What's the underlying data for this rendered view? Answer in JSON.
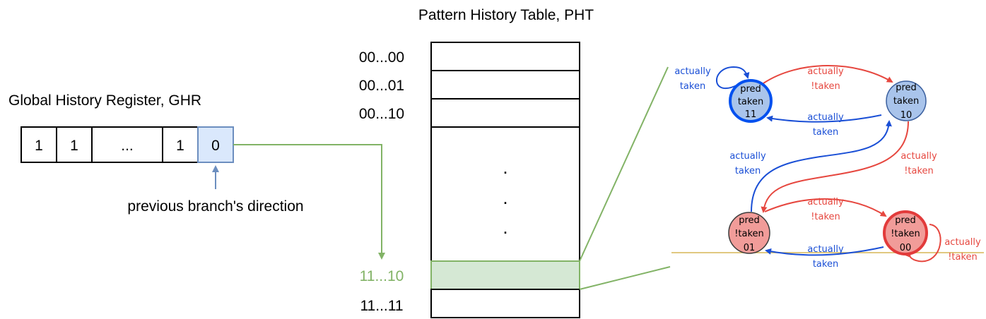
{
  "pht": {
    "title": "Pattern History Table, PHT",
    "rows": [
      {
        "label": "00...00"
      },
      {
        "label": "00...01"
      },
      {
        "label": "00...10"
      },
      {
        "label": ""
      },
      {
        "label": "11...10"
      },
      {
        "label": "11...11"
      }
    ],
    "ellipsis": ".",
    "highlight_color": "#d5e8d4",
    "highlight_label_color": "#82b366"
  },
  "ghr": {
    "title": "Global History Register, GHR",
    "cells": [
      "1",
      "1",
      "...",
      "1",
      "0"
    ],
    "highlight_color": "#dae8fc",
    "annotation": "previous branch's direction"
  },
  "fsm": {
    "states": [
      {
        "id": "s11",
        "line1": "pred",
        "line2": "taken",
        "line3": "11",
        "fill": "#a9c4eb",
        "stroke": "#0050ef"
      },
      {
        "id": "s10",
        "line1": "pred",
        "line2": "taken",
        "line3": "10",
        "fill": "#a9c4eb",
        "stroke": "#3a5f9e"
      },
      {
        "id": "s01",
        "line1": "pred",
        "line2": "!taken",
        "line3": "01",
        "fill": "#f19c99",
        "stroke": "#3a3a3a"
      },
      {
        "id": "s00",
        "line1": "pred",
        "line2": "!taken",
        "line3": "00",
        "fill": "#f19c99",
        "stroke": "#e23b3b"
      }
    ],
    "transition_labels": {
      "self11": [
        "actually",
        "taken"
      ],
      "t11_10": [
        "actually",
        "!taken"
      ],
      "t10_11": [
        "actually",
        "taken"
      ],
      "t01_10": [
        "actually",
        "taken"
      ],
      "t10_01": [
        "actually",
        "!taken"
      ],
      "t01_00": [
        "actually",
        "!taken"
      ],
      "t00_01": [
        "actually",
        "taken"
      ],
      "self00": [
        "actually",
        "!taken"
      ]
    },
    "taken_color": "#1a4fd6",
    "not_taken_color": "#e6473f"
  }
}
